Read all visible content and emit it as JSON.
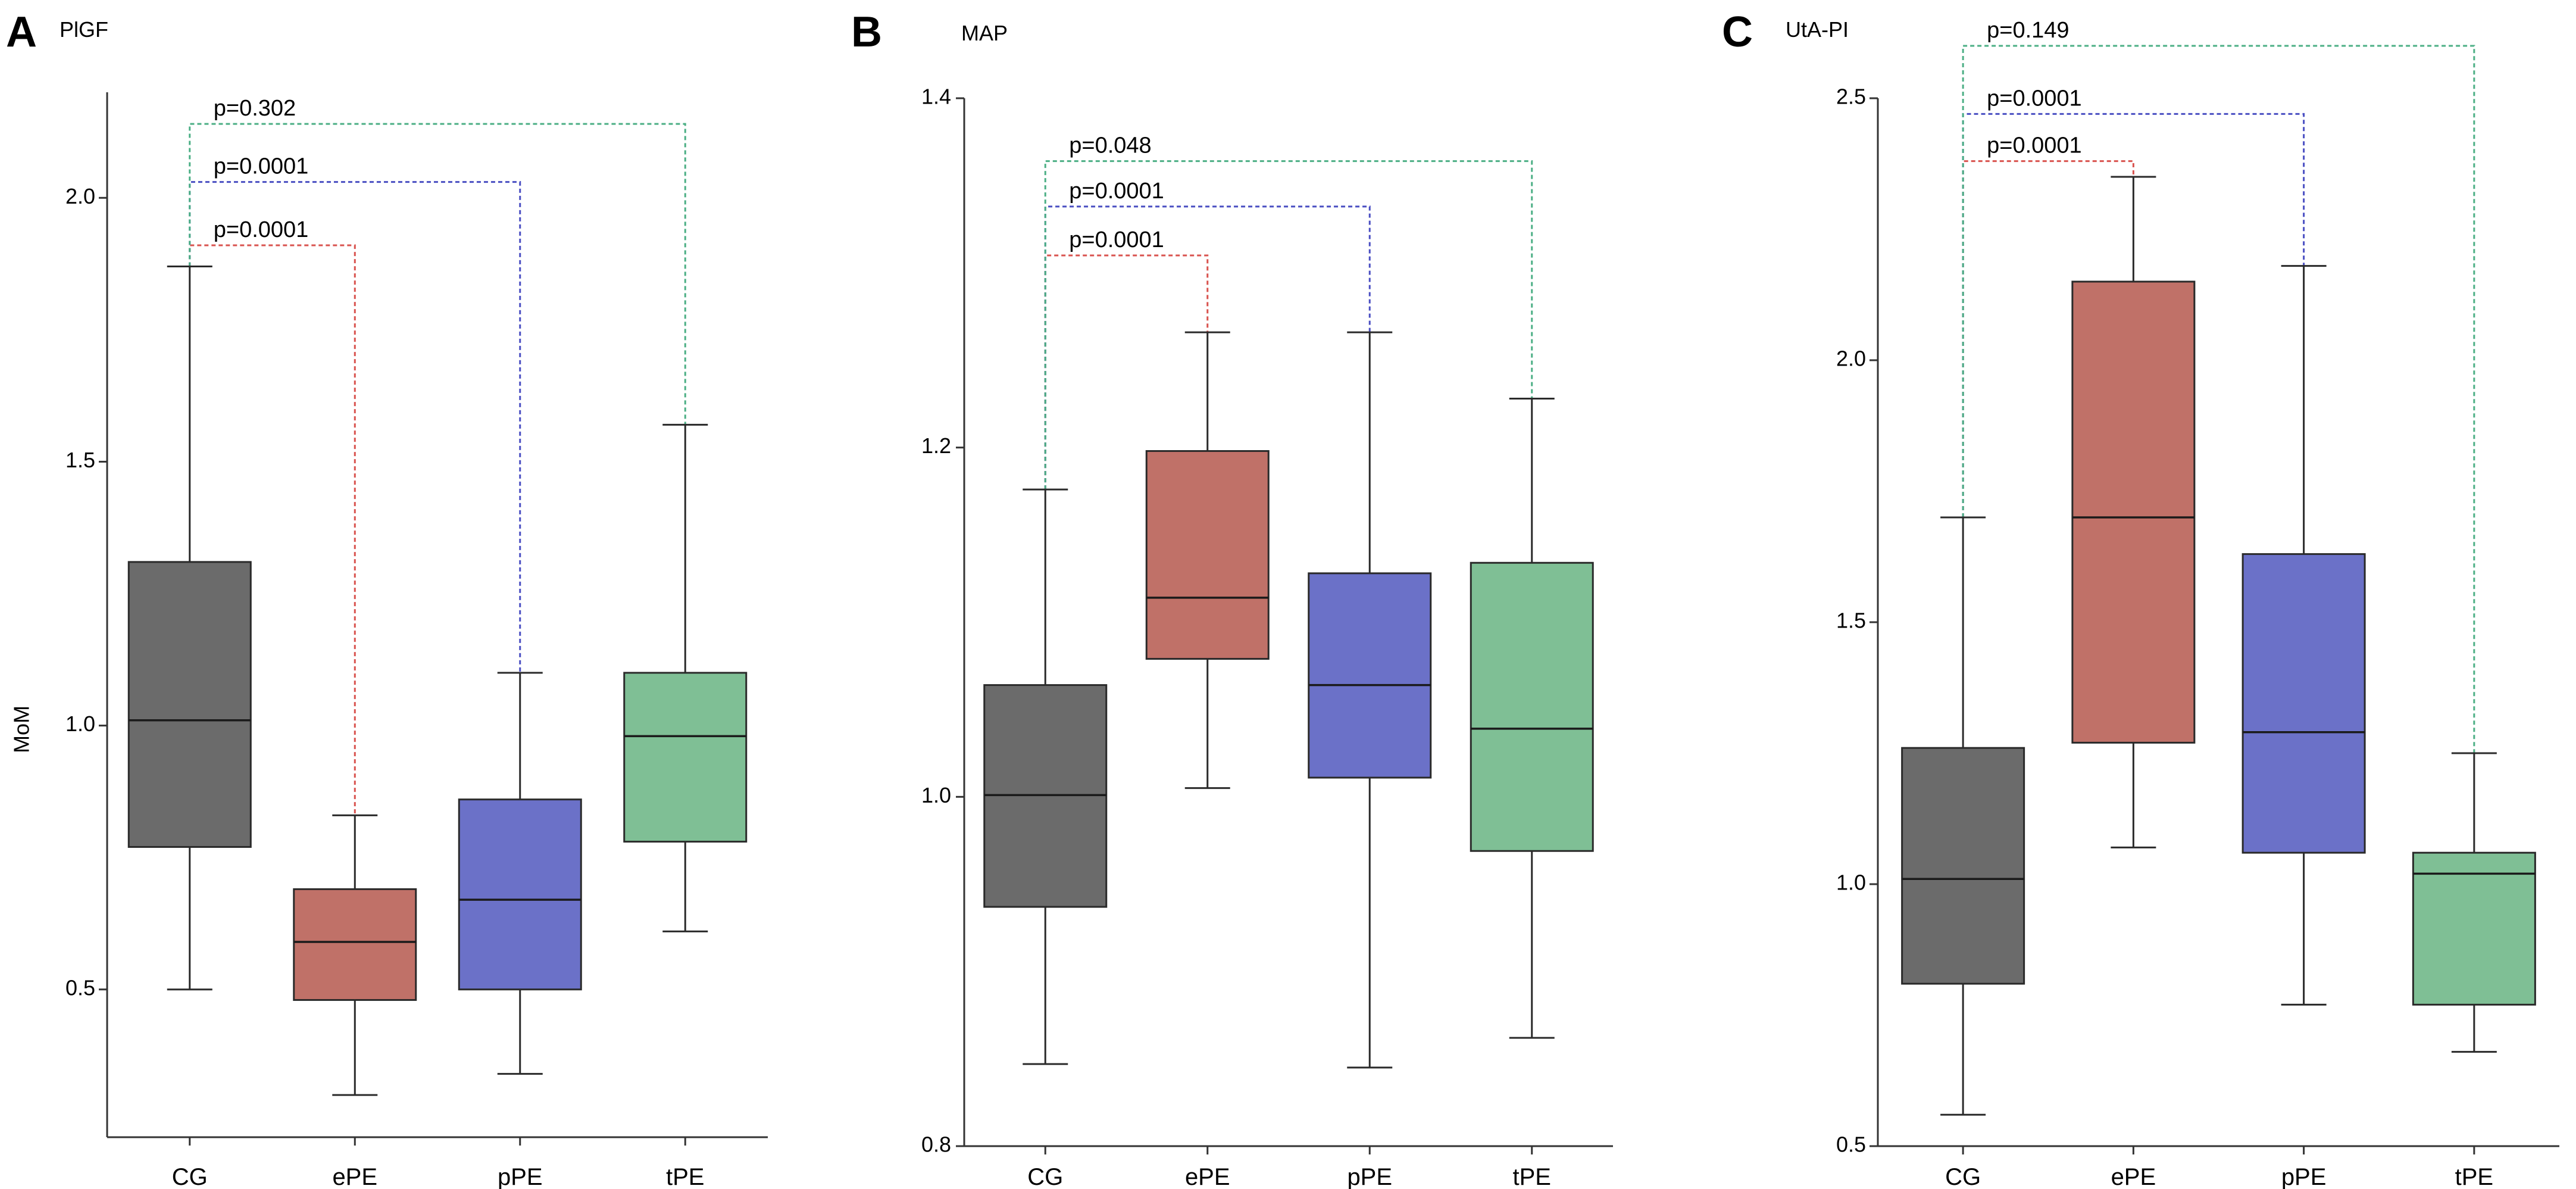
{
  "chart_data": [
    {
      "type": "boxplot",
      "panel_letter": "A",
      "title": "PlGF",
      "ylabel": "MoM",
      "xlabel": "",
      "ylim": [
        0.22,
        2.2
      ],
      "yticks": [
        0.5,
        1.0,
        1.5,
        2.0
      ],
      "ytick_labels": [
        "0.5",
        "1.0",
        "1.5",
        "2.0"
      ],
      "categories": [
        "CG",
        "ePE",
        "pPE",
        "tPE"
      ],
      "colors": [
        "#6b6b6b",
        "#c07168",
        "#6b71c8",
        "#7fbf95"
      ],
      "boxes": [
        {
          "group": "CG",
          "whisker_low": 0.5,
          "q1": 0.77,
          "median": 1.01,
          "q3": 1.31,
          "whisker_high": 1.87
        },
        {
          "group": "ePE",
          "whisker_low": 0.3,
          "q1": 0.48,
          "median": 0.59,
          "q3": 0.69,
          "whisker_high": 0.83
        },
        {
          "group": "pPE",
          "whisker_low": 0.34,
          "q1": 0.5,
          "median": 0.67,
          "q3": 0.86,
          "whisker_high": 1.1
        },
        {
          "group": "tPE",
          "whisker_low": 0.61,
          "q1": 0.78,
          "median": 0.98,
          "q3": 1.1,
          "whisker_high": 1.57
        }
      ],
      "comparisons": [
        {
          "from": "CG",
          "to": "ePE",
          "label": "p=0.0001",
          "level": 1.91,
          "color": "#d9534f"
        },
        {
          "from": "CG",
          "to": "pPE",
          "label": "p=0.0001",
          "level": 2.03,
          "color": "#4a4fc2"
        },
        {
          "from": "CG",
          "to": "tPE",
          "label": "p=0.302",
          "level": 2.14,
          "color": "#4caf85"
        }
      ]
    },
    {
      "type": "boxplot",
      "panel_letter": "B",
      "title": "MAP",
      "ylabel": "",
      "xlabel": "",
      "ylim": [
        0.8,
        1.4
      ],
      "yticks": [
        0.8,
        1.0,
        1.2,
        1.4
      ],
      "ytick_labels": [
        "0.8",
        "1.0",
        "1.2",
        "1.4"
      ],
      "categories": [
        "CG",
        "ePE",
        "pPE",
        "tPE"
      ],
      "colors": [
        "#6b6b6b",
        "#c07168",
        "#6b71c8",
        "#7fbf95"
      ],
      "boxes": [
        {
          "group": "CG",
          "whisker_low": 0.847,
          "q1": 0.937,
          "median": 1.001,
          "q3": 1.064,
          "whisker_high": 1.176
        },
        {
          "group": "ePE",
          "whisker_low": 1.005,
          "q1": 1.079,
          "median": 1.114,
          "q3": 1.198,
          "whisker_high": 1.266
        },
        {
          "group": "pPE",
          "whisker_low": 0.845,
          "q1": 1.011,
          "median": 1.064,
          "q3": 1.128,
          "whisker_high": 1.266
        },
        {
          "group": "tPE",
          "whisker_low": 0.862,
          "q1": 0.969,
          "median": 1.039,
          "q3": 1.134,
          "whisker_high": 1.228
        }
      ],
      "comparisons": [
        {
          "from": "CG",
          "to": "ePE",
          "label": "p=0.0001",
          "level": 1.31,
          "color": "#d9534f"
        },
        {
          "from": "CG",
          "to": "pPE",
          "label": "p=0.0001",
          "level": 1.338,
          "color": "#4a4fc2"
        },
        {
          "from": "CG",
          "to": "tPE",
          "label": "p=0.048",
          "level": 1.364,
          "color": "#4caf85"
        }
      ]
    },
    {
      "type": "boxplot",
      "panel_letter": "C",
      "title": "UtA-PI",
      "ylabel": "",
      "xlabel": "",
      "ylim": [
        0.5,
        2.5
      ],
      "yticks": [
        0.5,
        1.0,
        1.5,
        2.0,
        2.5
      ],
      "ytick_labels": [
        "0.5",
        "1.0",
        "1.5",
        "2.0",
        "2.5"
      ],
      "categories": [
        "CG",
        "ePE",
        "pPE",
        "tPE"
      ],
      "colors": [
        "#6b6b6b",
        "#c07168",
        "#6b71c8",
        "#7fbf95"
      ],
      "boxes": [
        {
          "group": "CG",
          "whisker_low": 0.56,
          "q1": 0.81,
          "median": 1.01,
          "q3": 1.26,
          "whisker_high": 1.7
        },
        {
          "group": "ePE",
          "whisker_low": 1.07,
          "q1": 1.27,
          "median": 1.7,
          "q3": 2.15,
          "whisker_high": 2.35
        },
        {
          "group": "pPE",
          "whisker_low": 0.77,
          "q1": 1.06,
          "median": 1.29,
          "q3": 1.63,
          "whisker_high": 2.18
        },
        {
          "group": "tPE",
          "whisker_low": 0.68,
          "q1": 0.77,
          "median": 1.02,
          "q3": 1.06,
          "whisker_high": 1.25
        }
      ],
      "comparisons": [
        {
          "from": "CG",
          "to": "ePE",
          "label": "p=0.0001",
          "level": 2.38,
          "color": "#d9534f"
        },
        {
          "from": "CG",
          "to": "pPE",
          "label": "p=0.0001",
          "level": 2.47,
          "color": "#4a4fc2"
        },
        {
          "from": "CG",
          "to": "tPE",
          "label": "p=0.149",
          "level": 2.6,
          "color": "#4caf85"
        }
      ]
    }
  ]
}
